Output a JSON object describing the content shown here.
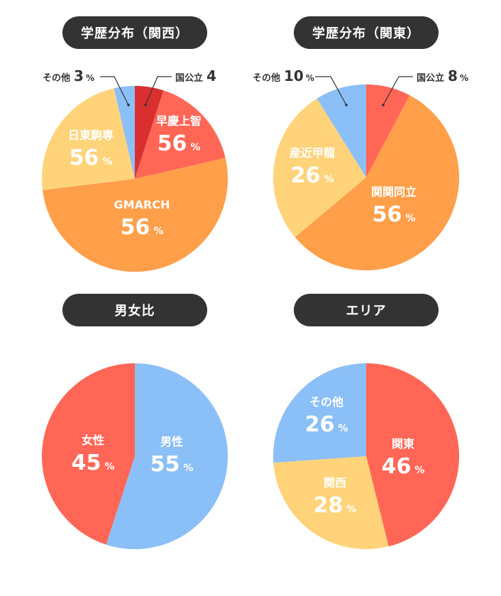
{
  "chart_data": [
    {
      "type": "pie",
      "title": "学歴分布（関西）",
      "slices": [
        {
          "label": "国公立",
          "value": 4,
          "unit": "",
          "color": "#d9302f"
        },
        {
          "label": "早慶上智",
          "value": 56,
          "unit": "%",
          "color": "#ff6656"
        },
        {
          "label": "GMARCH",
          "value": 56,
          "unit": "%",
          "color": "#ff9f4a"
        },
        {
          "label": "日東駒専",
          "value": 56,
          "unit": "%",
          "color": "#ffd37a"
        },
        {
          "label": "その他",
          "value": 3,
          "unit": "%",
          "color": "#8bbff7"
        }
      ]
    },
    {
      "type": "pie",
      "title": "学歴分布（関東）",
      "slices": [
        {
          "label": "国公立",
          "value": 8,
          "unit": "%",
          "color": "#ff6656"
        },
        {
          "label": "関関同立",
          "value": 56,
          "unit": "%",
          "color": "#ff9f4a"
        },
        {
          "label": "産近甲龍",
          "value": 26,
          "unit": "%",
          "color": "#ffd37a"
        },
        {
          "label": "その他",
          "value": 10,
          "unit": "%",
          "color": "#8bbff7"
        }
      ]
    },
    {
      "type": "pie",
      "title": "男女比",
      "slices": [
        {
          "label": "男性",
          "value": 55,
          "unit": "%",
          "color": "#8bbff7"
        },
        {
          "label": "女性",
          "value": 45,
          "unit": "%",
          "color": "#ff6656"
        }
      ]
    },
    {
      "type": "pie",
      "title": "エリア",
      "slices": [
        {
          "label": "関東",
          "value": 46,
          "unit": "%",
          "color": "#ff6656"
        },
        {
          "label": "関西",
          "value": 28,
          "unit": "%",
          "color": "#ffd37a"
        },
        {
          "label": "その他",
          "value": 26,
          "unit": "%",
          "color": "#8bbff7"
        }
      ]
    }
  ]
}
